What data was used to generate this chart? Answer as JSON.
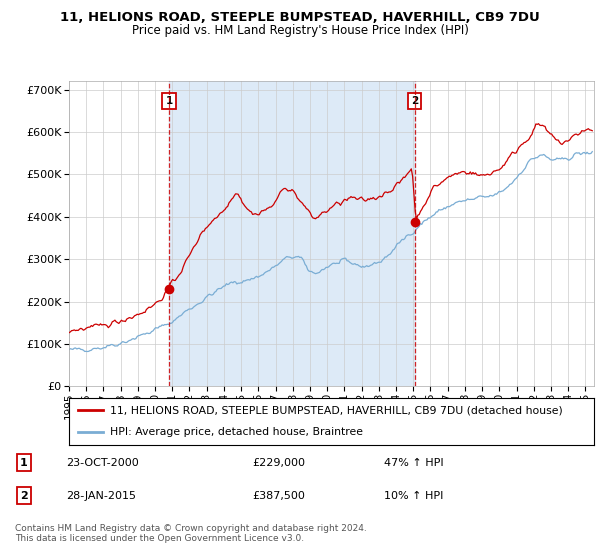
{
  "title": "11, HELIONS ROAD, STEEPLE BUMPSTEAD, HAVERHILL, CB9 7DU",
  "subtitle": "Price paid vs. HM Land Registry's House Price Index (HPI)",
  "ylim": [
    0,
    720000
  ],
  "xlim_start": 1995.0,
  "xlim_end": 2025.5,
  "yticks": [
    0,
    100000,
    200000,
    300000,
    400000,
    500000,
    600000,
    700000
  ],
  "ytick_labels": [
    "£0",
    "£100K",
    "£200K",
    "£300K",
    "£400K",
    "£500K",
    "£600K",
    "£700K"
  ],
  "sale1_x": 2000.81,
  "sale1_y": 229000,
  "sale2_x": 2015.08,
  "sale2_y": 387500,
  "vline1_x": 2000.81,
  "vline2_x": 2015.08,
  "red_line_color": "#cc0000",
  "blue_line_color": "#7aadd4",
  "span_color": "#ddeaf7",
  "legend_line1": "11, HELIONS ROAD, STEEPLE BUMPSTEAD, HAVERHILL, CB9 7DU (detached house)",
  "legend_line2": "HPI: Average price, detached house, Braintree",
  "table_row1": [
    "1",
    "23-OCT-2000",
    "£229,000",
    "47% ↑ HPI"
  ],
  "table_row2": [
    "2",
    "28-JAN-2015",
    "£387,500",
    "10% ↑ HPI"
  ],
  "footnote1": "Contains HM Land Registry data © Crown copyright and database right 2024.",
  "footnote2": "This data is licensed under the Open Government Licence v3.0."
}
